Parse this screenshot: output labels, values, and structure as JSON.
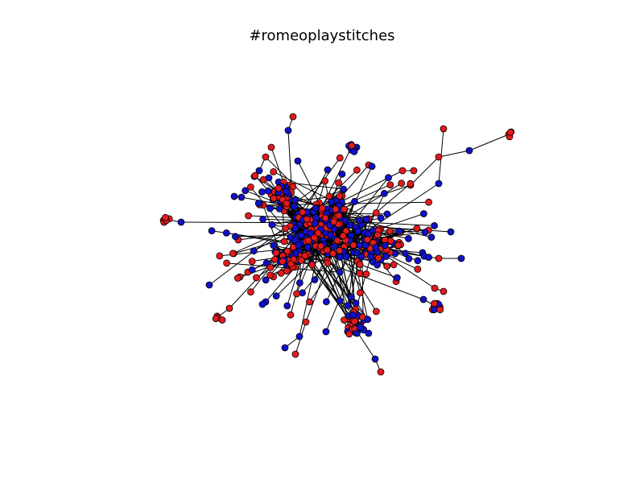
{
  "title": "#romeoplaystitches",
  "colors": {
    "background": "#ffffff",
    "group_a": "#e31a1c",
    "group_b": "#1010c8",
    "edge": "#000000"
  },
  "groups": [
    {
      "key": "a",
      "color": "#e31a1c"
    },
    {
      "key": "b",
      "color": "#1010c8"
    }
  ]
}
